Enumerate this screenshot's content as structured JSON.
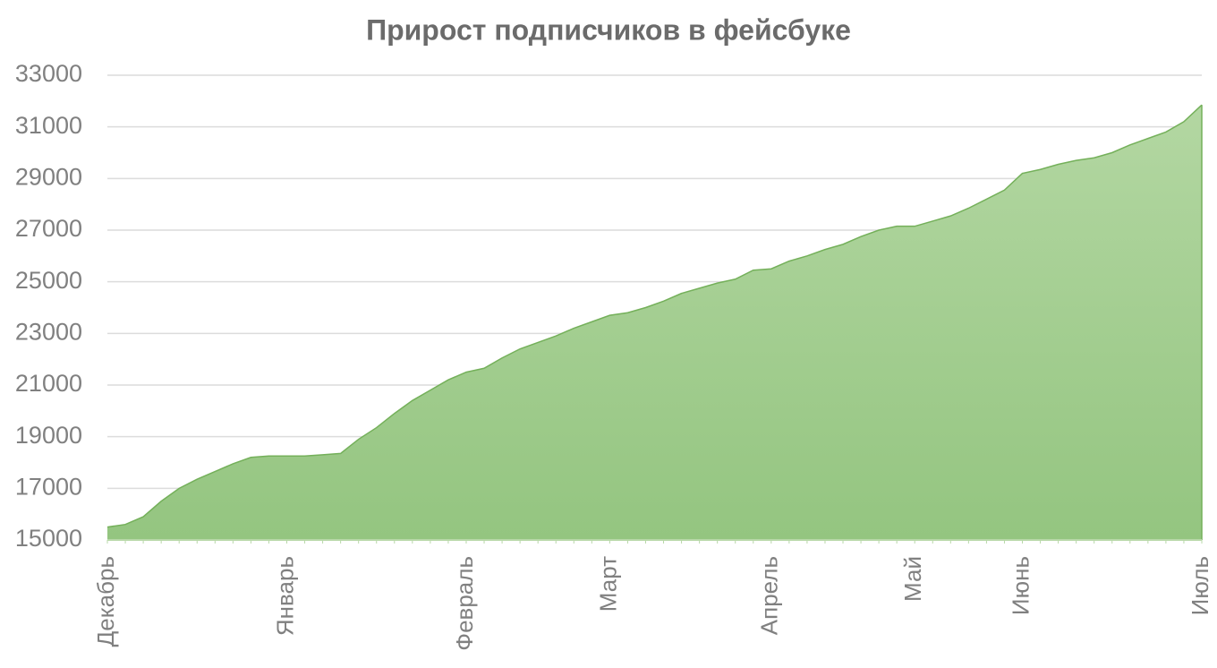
{
  "chart_data": {
    "type": "area",
    "title": "Прирост подписчиков в фейсбуке",
    "categories": [
      "Декабрь",
      null,
      null,
      null,
      null,
      null,
      null,
      null,
      null,
      null,
      "Январь",
      null,
      null,
      null,
      null,
      null,
      null,
      null,
      null,
      null,
      "Февраль",
      null,
      null,
      null,
      null,
      null,
      null,
      null,
      "Март",
      null,
      null,
      null,
      null,
      null,
      null,
      null,
      null,
      "Апрель",
      null,
      null,
      null,
      null,
      null,
      null,
      null,
      "Май",
      null,
      null,
      null,
      null,
      null,
      "Июнь",
      null,
      null,
      null,
      null,
      null,
      null,
      null,
      null,
      null,
      "Июль"
    ],
    "values": [
      15500,
      15600,
      15900,
      16500,
      17000,
      17350,
      17650,
      17950,
      18200,
      18250,
      18250,
      18250,
      18300,
      18350,
      18900,
      19350,
      19900,
      20400,
      20800,
      21200,
      21500,
      21650,
      22050,
      22400,
      22650,
      22900,
      23200,
      23450,
      23700,
      23800,
      24000,
      24250,
      24550,
      24750,
      24950,
      25100,
      25450,
      25500,
      25800,
      26000,
      26250,
      26450,
      26750,
      27000,
      27150,
      27150,
      27350,
      27550,
      27850,
      28200,
      28550,
      29200,
      29350,
      29550,
      29700,
      29800,
      30000,
      30300,
      30550,
      30800,
      31200,
      31850
    ],
    "color": "#a3cd90",
    "line_color": "#74b05a",
    "ylim": [
      15000,
      33000
    ],
    "yticks": [
      15000,
      17000,
      19000,
      21000,
      23000,
      25000,
      27000,
      29000,
      31000,
      33000
    ],
    "grid": true
  }
}
